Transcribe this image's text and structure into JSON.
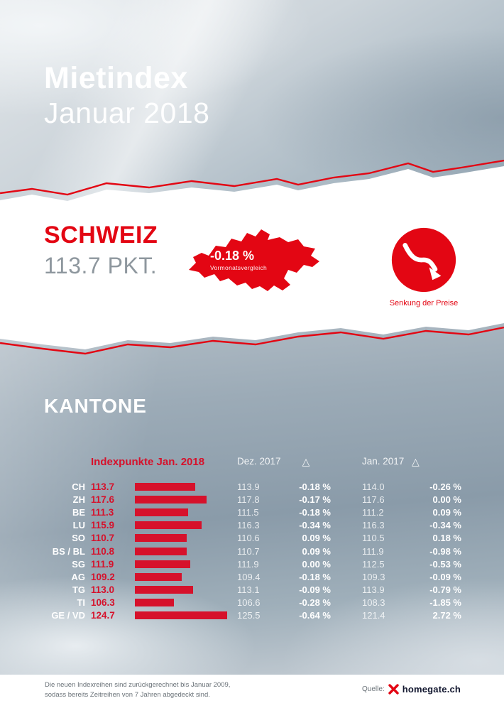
{
  "header": {
    "title": "Mietindex",
    "subtitle": "Januar 2018"
  },
  "schweiz": {
    "region_label": "SCHWEIZ",
    "index_value": "113.7 PKT.",
    "map_delta": "-0.18 %",
    "map_delta_caption": "Vormonatsvergleich",
    "trend_caption": "Senkung der Preise"
  },
  "kantone": {
    "section_title": "KANTONE",
    "table": {
      "col_index": "Indexpunkte Jan. 2018",
      "col_dez": "Dez. 2017",
      "col_dez_delta": "△",
      "col_jan": "Jan. 2017",
      "col_jan_delta": "△",
      "rows": [
        {
          "label": "CH",
          "jan2018": "113.7",
          "dez2017": "113.9",
          "delta_dez": "-0.18 %",
          "jan2017": "114.0",
          "delta_jan": "-0.26 %"
        },
        {
          "label": "ZH",
          "jan2018": "117.6",
          "dez2017": "117.8",
          "delta_dez": "-0.17 %",
          "jan2017": "117.6",
          "delta_jan": "0.00 %"
        },
        {
          "label": "BE",
          "jan2018": "111.3",
          "dez2017": "111.5",
          "delta_dez": "-0.18 %",
          "jan2017": "111.2",
          "delta_jan": "0.09 %"
        },
        {
          "label": "LU",
          "jan2018": "115.9",
          "dez2017": "116.3",
          "delta_dez": "-0.34 %",
          "jan2017": "116.3",
          "delta_jan": "-0.34 %"
        },
        {
          "label": "SO",
          "jan2018": "110.7",
          "dez2017": "110.6",
          "delta_dez": "0.09 %",
          "jan2017": "110.5",
          "delta_jan": "0.18 %"
        },
        {
          "label": "BS / BL",
          "jan2018": "110.8",
          "dez2017": "110.7",
          "delta_dez": "0.09 %",
          "jan2017": "111.9",
          "delta_jan": "-0.98 %"
        },
        {
          "label": "SG",
          "jan2018": "111.9",
          "dez2017": "111.9",
          "delta_dez": "0.00 %",
          "jan2017": "112.5",
          "delta_jan": "-0.53 %"
        },
        {
          "label": "AG",
          "jan2018": "109.2",
          "dez2017": "109.4",
          "delta_dez": "-0.18 %",
          "jan2017": "109.3",
          "delta_jan": "-0.09 %"
        },
        {
          "label": "TG",
          "jan2018": "113.0",
          "dez2017": "113.1",
          "delta_dez": "-0.09 %",
          "jan2017": "113.9",
          "delta_jan": "-0.79 %"
        },
        {
          "label": "TI",
          "jan2018": "106.3",
          "dez2017": "106.6",
          "delta_dez": "-0.28 %",
          "jan2017": "108.3",
          "delta_jan": "-1.85 %"
        },
        {
          "label": "GE / VD",
          "jan2018": "124.7",
          "dez2017": "125.5",
          "delta_dez": "-0.64 %",
          "jan2017": "121.4",
          "delta_jan": "2.72 %"
        }
      ]
    }
  },
  "footer": {
    "note_line1": "Die neuen Indexreihen sind zurückgerechnet bis Januar 2009,",
    "note_line2": "sodass bereits Zeitreihen von 7 Jahren abgedeckt sind.",
    "source_label": "Quelle:",
    "source_name": "homegate.ch"
  },
  "colors": {
    "brand_red": "#e30613",
    "bar_red": "#d6112b"
  },
  "chart_data": {
    "type": "bar",
    "orientation": "horizontal",
    "title": "Mietindex Januar 2018 – Kantone",
    "categories": [
      "CH",
      "ZH",
      "BE",
      "LU",
      "SO",
      "BS / BL",
      "SG",
      "AG",
      "TG",
      "TI",
      "GE / VD"
    ],
    "series": [
      {
        "name": "Indexpunkte Jan. 2018",
        "values": [
          113.7,
          117.6,
          111.3,
          115.9,
          110.7,
          110.8,
          111.9,
          109.2,
          113.0,
          106.3,
          124.7
        ]
      },
      {
        "name": "Dez. 2017",
        "values": [
          113.9,
          117.8,
          111.5,
          116.3,
          110.6,
          110.7,
          111.9,
          109.4,
          113.1,
          106.6,
          125.5
        ]
      },
      {
        "name": "Δ vs. Dez. 2017 (%)",
        "values": [
          -0.18,
          -0.17,
          -0.18,
          -0.34,
          0.09,
          0.09,
          0.0,
          -0.18,
          -0.09,
          -0.28,
          -0.64
        ]
      },
      {
        "name": "Jan. 2017",
        "values": [
          114.0,
          117.6,
          111.2,
          116.3,
          110.5,
          111.9,
          112.5,
          109.3,
          113.9,
          108.3,
          121.4
        ]
      },
      {
        "name": "Δ vs. Jan. 2017 (%)",
        "values": [
          -0.26,
          0.0,
          0.09,
          -0.34,
          0.18,
          -0.98,
          -0.53,
          -0.09,
          -0.79,
          -1.85,
          2.72
        ]
      }
    ],
    "national_index": {
      "region": "SCHWEIZ",
      "value_pkt": 113.7,
      "delta_vormonat_pct": -0.18,
      "trend": "Senkung der Preise"
    }
  }
}
